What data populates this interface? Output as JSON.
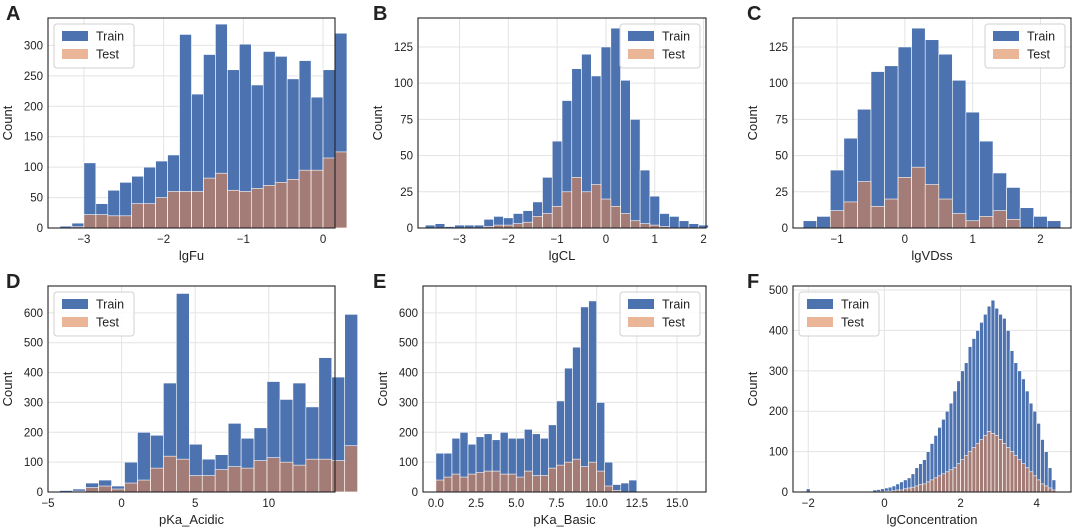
{
  "colors": {
    "train": "#4c72b0",
    "test": "#dd8452",
    "test_alpha": 0.6,
    "grid": "#e3e3e3",
    "frame": "#222222"
  },
  "chart_data": [
    {
      "type": "bar",
      "panel": "A",
      "xlabel": "lgFu",
      "ylabel": "Count",
      "xlim": [
        -3.45,
        0.15
      ],
      "ylim": [
        0,
        345
      ],
      "xticks": [
        -3,
        -2,
        -1,
        0
      ],
      "yticks": [
        0,
        50,
        100,
        150,
        200,
        250,
        300
      ],
      "legend": "top-left",
      "bin_start": -3.3,
      "bin_width": 0.15,
      "series": [
        {
          "name": "Train",
          "values": [
            3,
            8,
            107,
            40,
            62,
            75,
            85,
            100,
            110,
            120,
            318,
            220,
            285,
            335,
            260,
            302,
            235,
            290,
            282,
            245,
            275,
            215,
            260,
            320
          ]
        },
        {
          "name": "Test",
          "values": [
            0,
            2,
            22,
            22,
            20,
            20,
            40,
            40,
            50,
            60,
            60,
            60,
            82,
            90,
            62,
            60,
            65,
            70,
            75,
            80,
            95,
            95,
            115,
            125
          ]
        }
      ]
    },
    {
      "type": "bar",
      "panel": "B",
      "xlabel": "lgCL",
      "ylabel": "Count",
      "xlim": [
        -3.85,
        2.05
      ],
      "ylim": [
        0,
        145
      ],
      "xticks": [
        -3,
        -2,
        -1,
        0,
        1,
        2
      ],
      "yticks": [
        0,
        25,
        50,
        75,
        100,
        125
      ],
      "legend": "top-right",
      "bin_start": -3.7,
      "bin_width": 0.2,
      "series": [
        {
          "name": "Train",
          "values": [
            2,
            3,
            1,
            2,
            2,
            2,
            6,
            8,
            7,
            10,
            12,
            18,
            35,
            60,
            88,
            110,
            120,
            105,
            125,
            138,
            102,
            75,
            40,
            22,
            10,
            8,
            5,
            3,
            2
          ]
        },
        {
          "name": "Test",
          "values": [
            0,
            0,
            0,
            0,
            0,
            0,
            1,
            2,
            2,
            3,
            4,
            8,
            10,
            15,
            25,
            35,
            25,
            30,
            20,
            15,
            10,
            5,
            3,
            2,
            1,
            0,
            0,
            0,
            0
          ]
        }
      ]
    },
    {
      "type": "bar",
      "panel": "C",
      "xlabel": "lgVDss",
      "ylabel": "Count",
      "xlim": [
        -1.65,
        2.45
      ],
      "ylim": [
        0,
        145
      ],
      "xticks": [
        -1,
        0,
        1,
        2
      ],
      "yticks": [
        0,
        25,
        50,
        75,
        100,
        125
      ],
      "legend": "top-right",
      "bin_start": -1.5,
      "bin_width": 0.2,
      "series": [
        {
          "name": "Train",
          "values": [
            5,
            8,
            40,
            62,
            82,
            108,
            112,
            125,
            138,
            130,
            120,
            102,
            80,
            60,
            38,
            28,
            14,
            8,
            5
          ]
        },
        {
          "name": "Test",
          "values": [
            0,
            0,
            12,
            18,
            32,
            15,
            20,
            35,
            42,
            30,
            20,
            10,
            5,
            8,
            12,
            6,
            0,
            0,
            0
          ]
        }
      ]
    },
    {
      "type": "bar",
      "panel": "D",
      "xlabel": "pKa_Acidic",
      "ylabel": "Count",
      "xlim": [
        -5,
        14.5
      ],
      "ylim": [
        0,
        690
      ],
      "xticks": [
        -5,
        0,
        5,
        10
      ],
      "yticks": [
        0,
        100,
        200,
        300,
        400,
        500,
        600
      ],
      "legend": "top-left",
      "bin_start": -4.2,
      "bin_width": 0.88,
      "series": [
        {
          "name": "Train",
          "values": [
            5,
            10,
            30,
            40,
            20,
            100,
            200,
            190,
            365,
            665,
            160,
            110,
            125,
            230,
            180,
            215,
            370,
            310,
            365,
            285,
            450,
            385,
            595
          ]
        },
        {
          "name": "Test",
          "values": [
            0,
            3,
            15,
            20,
            10,
            30,
            40,
            80,
            120,
            110,
            55,
            55,
            75,
            85,
            80,
            105,
            115,
            100,
            90,
            110,
            110,
            105,
            155
          ]
        }
      ]
    },
    {
      "type": "bar",
      "panel": "E",
      "xlabel": "pKa_Basic",
      "ylabel": "Count",
      "xlim": [
        -0.8,
        16.8
      ],
      "ylim": [
        0,
        690
      ],
      "xticks": [
        0.0,
        2.5,
        5.0,
        7.5,
        10.0,
        12.5,
        15.0
      ],
      "xtick_labels": [
        "0.0",
        "2.5",
        "5.0",
        "7.5",
        "10.0",
        "12.5",
        "15.0"
      ],
      "yticks": [
        0,
        100,
        200,
        300,
        400,
        500,
        600
      ],
      "legend": "top-right",
      "bin_start": 0,
      "bin_width": 0.5,
      "series": [
        {
          "name": "Train",
          "values": [
            130,
            130,
            180,
            200,
            160,
            185,
            195,
            175,
            200,
            180,
            180,
            210,
            195,
            180,
            225,
            305,
            415,
            485,
            620,
            640,
            300,
            100,
            25,
            30,
            40
          ]
        },
        {
          "name": "Test",
          "values": [
            40,
            50,
            60,
            50,
            60,
            65,
            70,
            70,
            60,
            60,
            50,
            70,
            55,
            55,
            80,
            90,
            100,
            110,
            85,
            100,
            70,
            20,
            5,
            0,
            0
          ]
        }
      ]
    },
    {
      "type": "bar",
      "panel": "F",
      "xlabel": "lgConcentration",
      "ylabel": "Count",
      "xlim": [
        -2.4,
        4.9
      ],
      "ylim": [
        0,
        510
      ],
      "xticks": [
        -2,
        0,
        2,
        4
      ],
      "yticks": [
        0,
        100,
        200,
        300,
        400,
        500
      ],
      "legend": "top-left",
      "bin_start": -0.3,
      "bin_width": 0.1,
      "series": [
        {
          "name": "Train",
          "values": [
            5,
            6,
            8,
            10,
            12,
            15,
            20,
            25,
            30,
            35,
            45,
            60,
            70,
            80,
            100,
            120,
            140,
            160,
            180,
            200,
            220,
            250,
            275,
            300,
            320,
            360,
            380,
            400,
            420,
            440,
            460,
            475,
            455,
            440,
            430,
            400,
            350,
            320,
            300,
            280,
            250,
            220,
            200,
            170,
            130,
            100,
            60,
            30
          ]
        },
        {
          "name": "Test",
          "values": [
            0,
            1,
            1,
            2,
            2,
            3,
            5,
            5,
            8,
            10,
            12,
            15,
            18,
            20,
            25,
            30,
            35,
            40,
            45,
            50,
            55,
            60,
            70,
            80,
            90,
            100,
            110,
            120,
            130,
            140,
            150,
            145,
            140,
            130,
            120,
            110,
            100,
            90,
            80,
            70,
            60,
            50,
            40,
            30,
            20,
            15,
            10,
            5
          ]
        }
      ],
      "outlier_bins": [
        {
          "x": -2.0,
          "width": 0.1,
          "train": 8,
          "test": 0
        }
      ]
    }
  ]
}
